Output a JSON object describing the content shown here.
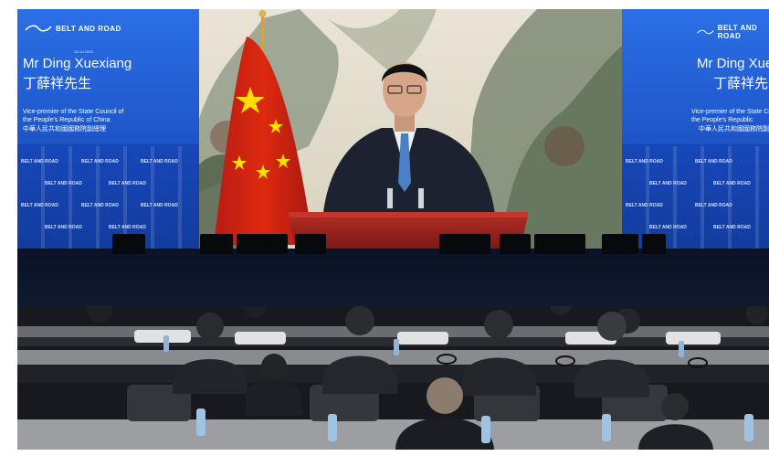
{
  "left_panel": {
    "logo": "BELT AND ROAD",
    "date": "15 Jul 2023",
    "speaker_name": "Mr Ding Xuexiang",
    "speaker_name_cn": "丁薛祥先生",
    "title_line1": "Vice-premier of the State Council of",
    "title_line2": "the People's Republic of China",
    "title_cn": "中華人民共和國國務院副總理"
  },
  "right_panel": {
    "logo": "BELT AND ROAD",
    "speaker_name": "Mr Ding Xue",
    "speaker_name_cn": "丁薛祥先",
    "title_line1": "Vice-premier of the State Council of",
    "title_line2": "the People's Republic",
    "title_cn": "中華人民共和國國務院副總理"
  },
  "wall_logo_text": "BELT AND ROAD",
  "colors": {
    "panel_blue": "#1e5fd6",
    "flag_red": "#de2910",
    "flag_star": "#ffde00",
    "podium_red": "#9c2320",
    "suit": "#1c2230",
    "tie": "#4b7fc6"
  }
}
